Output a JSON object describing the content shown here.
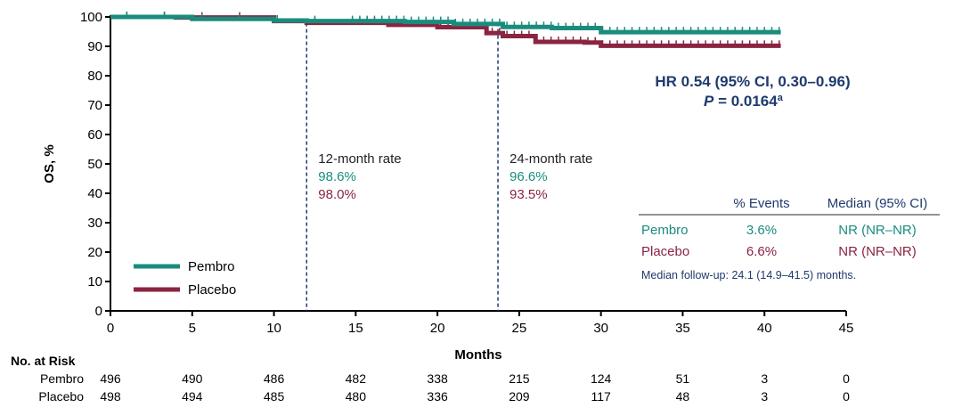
{
  "chart_data": {
    "type": "line",
    "subtype": "kaplan-meier",
    "ylabel": "OS, %",
    "xlabel": "Months",
    "xlim": [
      0,
      45
    ],
    "ylim": [
      0,
      100
    ],
    "xticks": [
      0,
      5,
      10,
      15,
      20,
      25,
      30,
      35,
      40,
      45
    ],
    "yticks": [
      0,
      10,
      20,
      30,
      40,
      50,
      60,
      70,
      80,
      90,
      100
    ],
    "colors": {
      "Pembro": "#1a8c7e",
      "Placebo": "#8a2440",
      "annotation": "#1f3a6e"
    },
    "series": [
      {
        "name": "Pembro",
        "points": [
          [
            0,
            100
          ],
          [
            3,
            100
          ],
          [
            5,
            99.3
          ],
          [
            10,
            98.8
          ],
          [
            12,
            98.6
          ],
          [
            18,
            98.3
          ],
          [
            21,
            97.6
          ],
          [
            24,
            96.6
          ],
          [
            27,
            96.2
          ],
          [
            30,
            94.8
          ],
          [
            41,
            94.8
          ]
        ]
      },
      {
        "name": "Placebo",
        "points": [
          [
            0,
            100
          ],
          [
            4,
            99.8
          ],
          [
            10,
            98.6
          ],
          [
            12,
            98.0
          ],
          [
            17,
            97.3
          ],
          [
            20,
            96.5
          ],
          [
            23,
            94.5
          ],
          [
            24,
            93.5
          ],
          [
            26,
            91.5
          ],
          [
            29,
            91.3
          ],
          [
            30,
            90.2
          ],
          [
            41,
            90.2
          ]
        ]
      }
    ],
    "reference_lines": [
      {
        "x": 12,
        "label": "12-month rate",
        "pembro": "98.6%",
        "placebo": "98.0%"
      },
      {
        "x": 23.7,
        "label": "24-month rate",
        "pembro": "96.6%",
        "placebo": "93.5%"
      }
    ],
    "hr_line1": "HR 0.54 (95% CI, 0.30–0.96)",
    "p_label": "P",
    "p_value": " = 0.0164",
    "p_sup": "a",
    "summary_table": {
      "headers": [
        "% Events",
        "Median (95% CI)"
      ],
      "rows": [
        {
          "name": "Pembro",
          "events": "3.6%",
          "median": "NR (NR–NR)"
        },
        {
          "name": "Placebo",
          "events": "6.6%",
          "median": "NR (NR–NR)"
        }
      ],
      "footnote": "Median follow-up: 24.1 (14.9–41.5) months."
    },
    "legend": [
      "Pembro",
      "Placebo"
    ],
    "legend_position": "bottom-left",
    "risk_table": {
      "title": "No. at Risk",
      "rows": [
        {
          "name": "Pembro",
          "values": [
            496,
            490,
            486,
            482,
            338,
            215,
            124,
            51,
            3,
            0
          ]
        },
        {
          "name": "Placebo",
          "values": [
            498,
            494,
            485,
            480,
            336,
            209,
            117,
            48,
            3,
            0
          ]
        }
      ]
    }
  }
}
